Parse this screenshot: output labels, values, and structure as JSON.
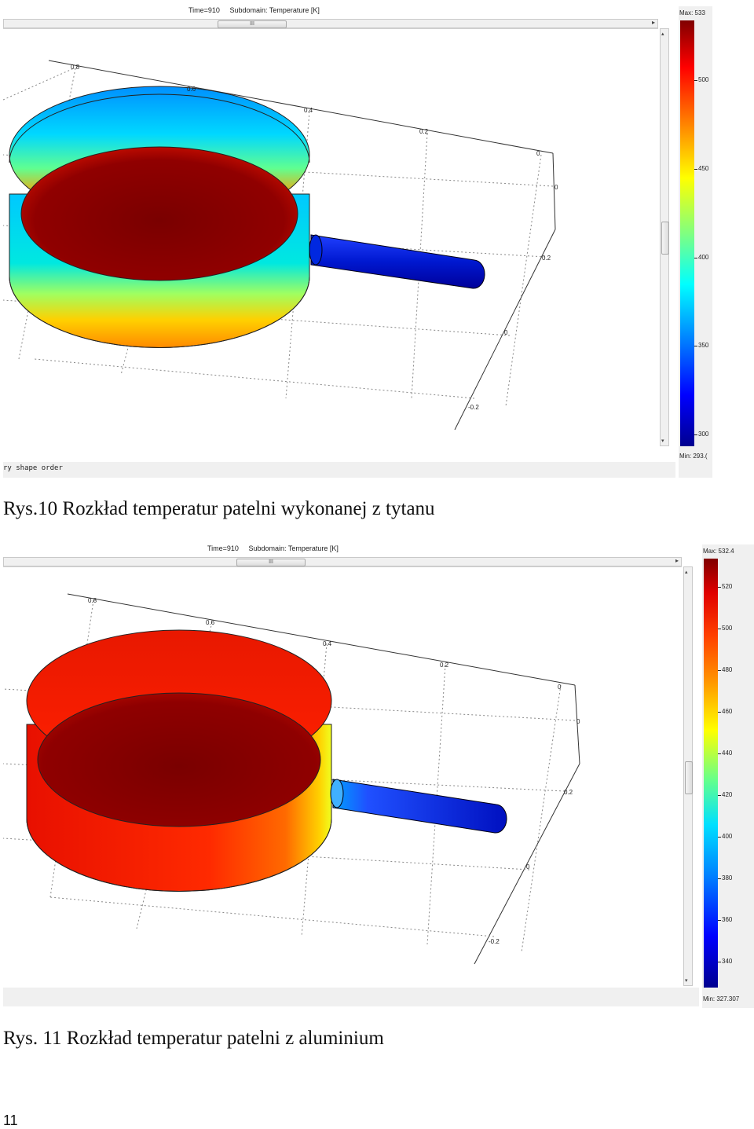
{
  "figure1": {
    "title_time": "Time=910",
    "title_subdomain": "Subdomain: Temperature [K]",
    "scroll_thumb": "III",
    "legend_max": "Max: 533",
    "legend_min": "Min: 293.(",
    "legend_ticks": [
      "500",
      "450",
      "400",
      "350",
      "300"
    ],
    "axis_ticks": [
      "0.8",
      "0.6",
      "0.4",
      "0.2",
      "0",
      "0",
      "0.2",
      "0",
      "-0.2"
    ],
    "status": "ry shape order",
    "caption": "Rys.10 Rozkład temperatur patelni wykonanej z tytanu"
  },
  "figure2": {
    "title_time": "Time=910",
    "title_subdomain": "Subdomain: Temperature [K]",
    "scroll_thumb": "III",
    "legend_max": "Max: 532.4",
    "legend_min": "Min: 327.307",
    "legend_ticks": [
      "520",
      "500",
      "480",
      "460",
      "440",
      "420",
      "400",
      "380",
      "360",
      "340"
    ],
    "axis_ticks": [
      "0.8",
      "0.6",
      "0.4",
      "0.2",
      "0",
      "0",
      "0.2",
      "0",
      "-0.2"
    ],
    "caption": "Rys. 11 Rozkład temperatur patelni z aluminium"
  },
  "colors": {
    "hot": "#800000",
    "warm": "#ff2000",
    "mid": "#ffff00",
    "cool": "#00c8ff",
    "cold": "#0000c8"
  },
  "page_number": "11"
}
